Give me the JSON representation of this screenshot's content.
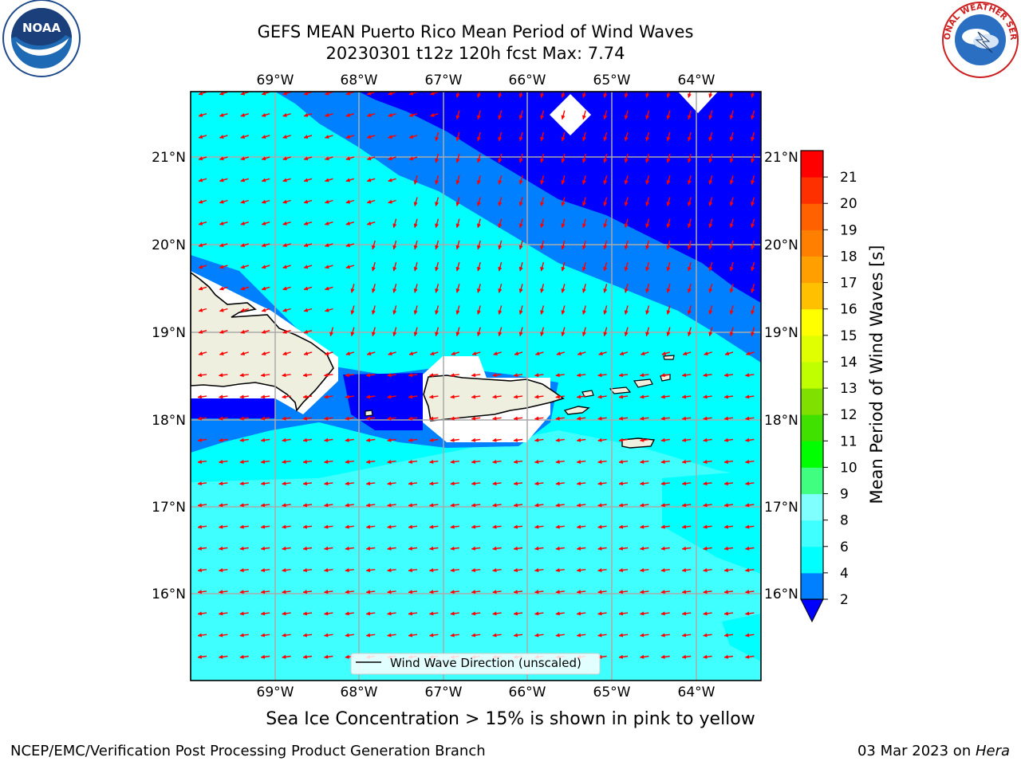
{
  "title_line1": "GEFS MEAN Puerto Rico Mean Period of Wind Waves",
  "title_line2": "20230301 t12z 120h fcst   Max: 7.74",
  "lon_ticks": [
    "69°W",
    "68°W",
    "67°W",
    "66°W",
    "65°W",
    "64°W"
  ],
  "lat_ticks": [
    "21°N",
    "20°N",
    "19°N",
    "18°N",
    "17°N",
    "16°N"
  ],
  "legend_label": "Wind Wave Direction (unscaled)",
  "colorbar": {
    "label": "Mean Period of Wind Waves [s]",
    "ticks": [
      "2",
      "4",
      "6",
      "8",
      "9",
      "10",
      "11",
      "12",
      "13",
      "14",
      "15",
      "16",
      "17",
      "18",
      "19",
      "20",
      "21"
    ],
    "colors": [
      "#0000ff",
      "#0080ff",
      "#00ffff",
      "#40ffff",
      "#80ffff",
      "#40ff80",
      "#00ff00",
      "#40e000",
      "#80e000",
      "#c0ff00",
      "#e0ff00",
      "#ffff00",
      "#ffc000",
      "#ffa000",
      "#ff8000",
      "#ff6000",
      "#ff3000",
      "#ff0000"
    ]
  },
  "ice_note": "Sea Ice Concentration > 15% is shown in pink to yellow",
  "footer_left": "NCEP/EMC/Verification Post Processing Product Generation Branch",
  "footer_date": "03 Mar 2023 on ",
  "footer_host": "Hera",
  "logos": {
    "left": "NOAA",
    "right": "NATIONAL WEATHER SERVICE"
  }
}
